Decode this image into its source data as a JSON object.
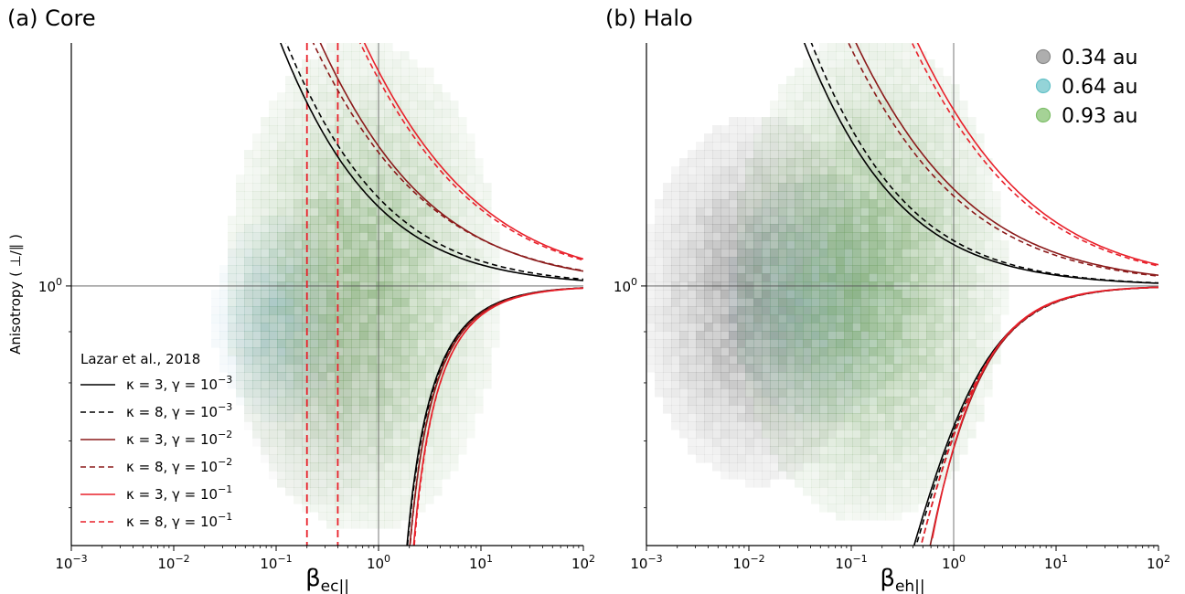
{
  "chart_data": [
    {
      "panel_title": "(a) Core",
      "type": "line",
      "xlabel": "β",
      "xlabel_sub": "ec||",
      "ylabel": "Anisotropy ( ⊥/∥ )",
      "xscale": "log",
      "yscale": "log",
      "xlim": [
        0.001,
        100
      ],
      "ylim": [
        0.55,
        1.75
      ],
      "x_tick_labels": [
        {
          "base": "10",
          "exp": "−3"
        },
        {
          "base": "10",
          "exp": "−2"
        },
        {
          "base": "10",
          "exp": "−1"
        },
        {
          "base": "10",
          "exp": "0"
        },
        {
          "base": "10",
          "exp": "1"
        },
        {
          "base": "10",
          "exp": "2"
        }
      ],
      "y_tick_labels": [
        {
          "base": "10",
          "exp": "0"
        }
      ],
      "reference_lines": {
        "x": [
          1
        ],
        "y": [
          1
        ]
      },
      "vertical_dashed_lines": [
        0.2,
        0.4
      ],
      "vertical_dashed_color": "#e8202a",
      "legend": {
        "title": "Lazar et al., 2018",
        "placement": "lower-left",
        "entries": [
          {
            "label": "κ = 3, γ = 10",
            "exp": "−3",
            "color": "#000000",
            "dashed": false
          },
          {
            "label": "κ = 8, γ = 10",
            "exp": "−3",
            "color": "#000000",
            "dashed": true
          },
          {
            "label": "κ = 3, γ = 10",
            "exp": "−2",
            "color": "#8b1a1a",
            "dashed": false
          },
          {
            "label": "κ = 8, γ = 10",
            "exp": "−2",
            "color": "#8b1a1a",
            "dashed": true
          },
          {
            "label": "κ = 3, γ = 10",
            "exp": "−1",
            "color": "#e8202a",
            "dashed": false
          },
          {
            "label": "κ = 8, γ = 10",
            "exp": "−1",
            "color": "#e8202a",
            "dashed": true
          }
        ]
      },
      "series": [
        {
          "color": "#000000",
          "dashed": false,
          "upper": {
            "a": 0.2,
            "b": 0.6
          },
          "lower": {
            "a": 0.7,
            "x0": 1.4
          }
        },
        {
          "color": "#000000",
          "dashed": true,
          "upper": {
            "a": 0.225,
            "b": 0.58
          },
          "lower": {
            "a": 0.72,
            "x0": 1.38
          }
        },
        {
          "color": "#8b1a1a",
          "dashed": false,
          "upper": {
            "a": 0.38,
            "b": 0.52
          },
          "lower": {
            "a": 0.74,
            "x0": 1.45
          }
        },
        {
          "color": "#8b1a1a",
          "dashed": true,
          "upper": {
            "a": 0.36,
            "b": 0.5
          },
          "lower": {
            "a": 0.72,
            "x0": 1.5
          }
        },
        {
          "color": "#e8202a",
          "dashed": false,
          "upper": {
            "a": 0.64,
            "b": 0.5
          },
          "lower": {
            "a": 0.78,
            "x0": 1.55
          }
        },
        {
          "color": "#e8202a",
          "dashed": true,
          "upper": {
            "a": 0.61,
            "b": 0.5
          },
          "lower": {
            "a": 0.77,
            "x0": 1.6
          }
        }
      ],
      "density": [
        {
          "dataset": "0.34 au",
          "cx": 0.3,
          "cy": 0.86,
          "sx": 0.42,
          "sy": 0.075,
          "peak": 0.25
        },
        {
          "dataset": "0.64 au",
          "cx": 0.1,
          "cy": 0.93,
          "sx": 0.3,
          "sy": 0.05,
          "peak": 0.35
        },
        {
          "dataset": "0.93 au",
          "cx": 0.7,
          "cy": 1.0,
          "sx": 0.65,
          "sy": 0.12,
          "peak": 0.55
        }
      ]
    },
    {
      "panel_title": "(b) Halo",
      "type": "line",
      "xlabel": "β",
      "xlabel_sub": "eh||",
      "ylabel": "",
      "xscale": "log",
      "yscale": "log",
      "xlim": [
        0.001,
        100
      ],
      "ylim": [
        0.55,
        1.75
      ],
      "x_tick_labels": [
        {
          "base": "10",
          "exp": "−3"
        },
        {
          "base": "10",
          "exp": "−2"
        },
        {
          "base": "10",
          "exp": "−1"
        },
        {
          "base": "10",
          "exp": "0"
        },
        {
          "base": "10",
          "exp": "1"
        },
        {
          "base": "10",
          "exp": "2"
        }
      ],
      "y_tick_labels": [
        {
          "base": "10",
          "exp": "0"
        }
      ],
      "reference_lines": {
        "x": [
          1
        ],
        "y": [
          1
        ]
      },
      "legend": {
        "placement": "top-right",
        "entries": [
          {
            "label": "0.34 au",
            "color": "#8c8c8c"
          },
          {
            "label": "0.64 au",
            "color": "#66c2c8"
          },
          {
            "label": "0.93 au",
            "color": "#7fbf6a"
          }
        ]
      },
      "series": [
        {
          "color": "#000000",
          "dashed": false,
          "upper": {
            "a": 0.1,
            "b": 0.6
          },
          "lower": {
            "a": 0.48,
            "x0": 0.35
          }
        },
        {
          "color": "#000000",
          "dashed": true,
          "upper": {
            "a": 0.11,
            "b": 0.6
          },
          "lower": {
            "a": 0.5,
            "x0": 0.33
          }
        },
        {
          "color": "#8b1a1a",
          "dashed": false,
          "upper": {
            "a": 0.25,
            "b": 0.5
          },
          "lower": {
            "a": 0.47,
            "x0": 0.55
          }
        },
        {
          "color": "#8b1a1a",
          "dashed": true,
          "upper": {
            "a": 0.23,
            "b": 0.5
          },
          "lower": {
            "a": 0.49,
            "x0": 0.4
          }
        },
        {
          "color": "#e8202a",
          "dashed": false,
          "upper": {
            "a": 0.5,
            "b": 0.5
          },
          "lower": {
            "a": 0.45,
            "x0": 0.6
          }
        },
        {
          "color": "#e8202a",
          "dashed": true,
          "upper": {
            "a": 0.47,
            "b": 0.5
          },
          "lower": {
            "a": 0.48,
            "x0": 0.42
          }
        }
      ],
      "density": [
        {
          "dataset": "0.34 au",
          "cx": 0.012,
          "cy": 0.97,
          "sx": 0.55,
          "sy": 0.09,
          "peak": 0.65
        },
        {
          "dataset": "0.64 au",
          "cx": 0.05,
          "cy": 0.97,
          "sx": 0.45,
          "sy": 0.06,
          "peak": 0.35
        },
        {
          "dataset": "0.93 au",
          "cx": 0.15,
          "cy": 1.02,
          "sx": 0.65,
          "sy": 0.12,
          "peak": 0.6
        }
      ]
    }
  ]
}
